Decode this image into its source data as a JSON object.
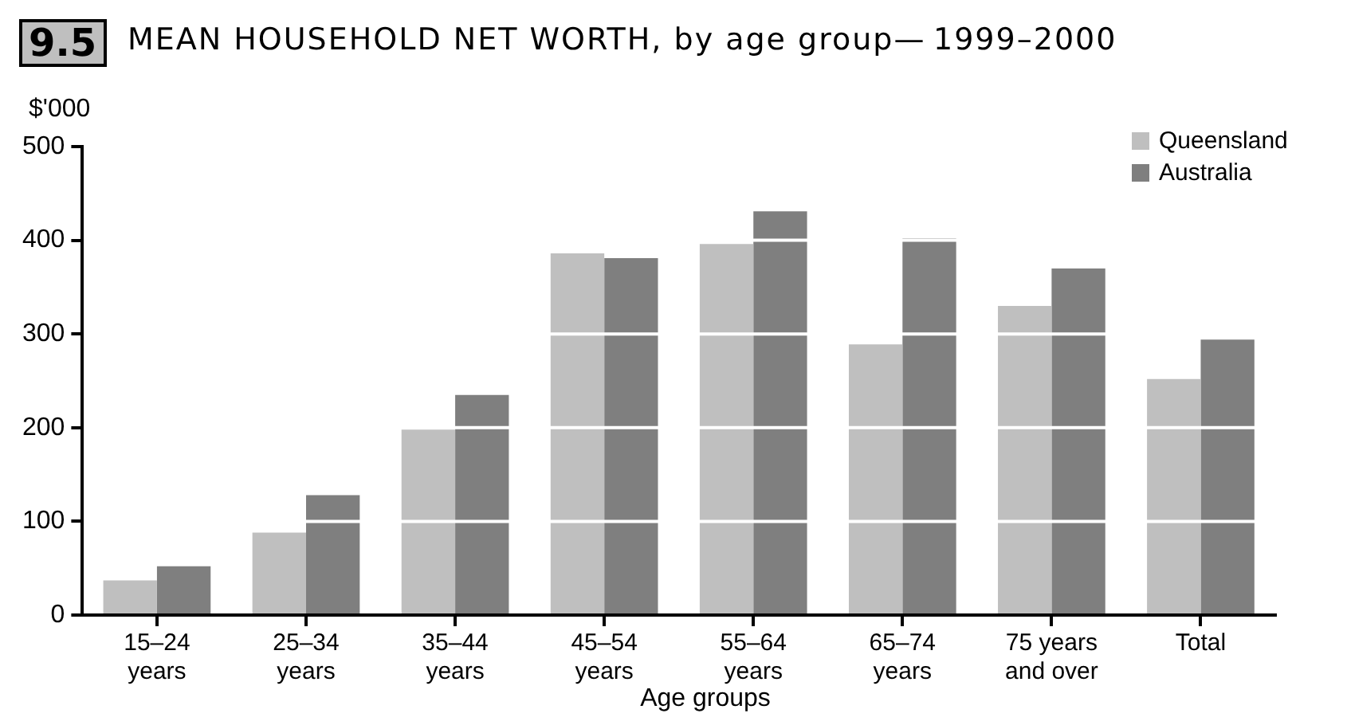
{
  "chart_data": {
    "type": "bar",
    "title": "MEAN HOUSEHOLD NET WORTH, by age group— 1999–2000",
    "annotations": [
      "9.5"
    ],
    "ylabel": "$'000",
    "xlabel": "Age groups",
    "categories": [
      "15–24\nyears",
      "25–34\nyears",
      "35–44\nyears",
      "45–54\nyears",
      "55–64\nyears",
      "65–74\nyears",
      "75 years\nand over",
      "Total"
    ],
    "series": [
      {
        "name": "Queensland",
        "color": "#bfbfbf",
        "values": [
          37,
          88,
          198,
          386,
          396,
          289,
          330,
          252
        ]
      },
      {
        "name": "Australia",
        "color": "#7f7f7f",
        "values": [
          52,
          128,
          235,
          381,
          431,
          402,
          370,
          294
        ]
      }
    ],
    "ylim": [
      0,
      500
    ],
    "yticks": [
      0,
      100,
      200,
      300,
      400,
      500
    ],
    "grid": "y",
    "legend": "top right"
  }
}
